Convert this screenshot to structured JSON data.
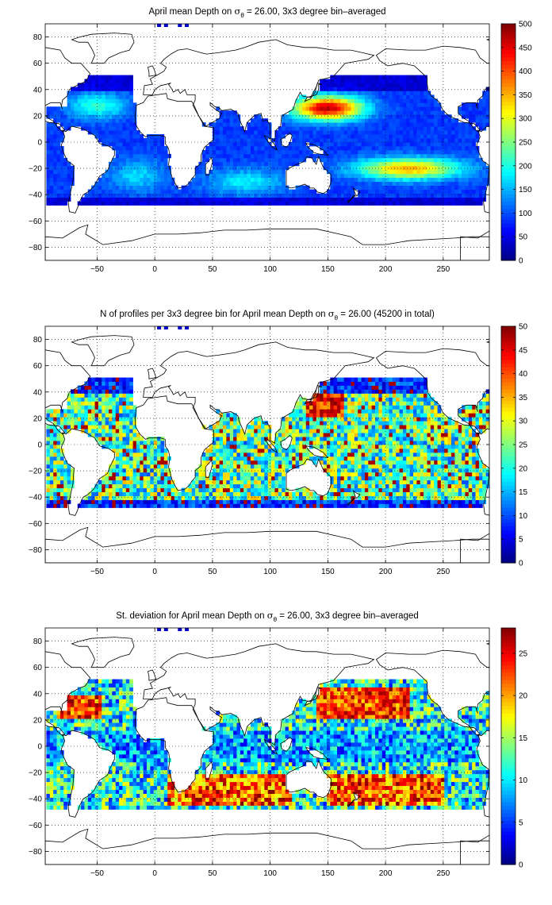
{
  "chart_data": [
    {
      "type": "heatmap",
      "title_prefix": "April mean Depth on ",
      "title_symbol": "σ",
      "title_subscript": "θ",
      "title_suffix": " = 26.00, 3x3 degree bin–averaged",
      "x_ticks": [
        "−50",
        "0",
        "50",
        "100",
        "150",
        "200",
        "250"
      ],
      "x_tick_values": [
        -50,
        0,
        50,
        100,
        150,
        200,
        250
      ],
      "y_ticks": [
        "80",
        "60",
        "40",
        "20",
        "0",
        "−20",
        "−40",
        "−60",
        "−80"
      ],
      "y_tick_values": [
        80,
        60,
        40,
        20,
        0,
        -20,
        -40,
        -60,
        -80
      ],
      "xlim": [
        -95,
        290
      ],
      "ylim": [
        -90,
        90
      ],
      "grid": true,
      "colorbar_ticks": [
        "500",
        "450",
        "400",
        "350",
        "300",
        "250",
        "200",
        "150",
        "100",
        "50",
        "0"
      ],
      "colorbar_values": [
        500,
        450,
        400,
        350,
        300,
        250,
        200,
        150,
        100,
        50,
        0
      ],
      "crange": [
        0,
        500
      ],
      "colormap": "jet",
      "field": "depth"
    },
    {
      "type": "heatmap",
      "title_prefix": "N of profiles per 3x3 degree bin for April mean Depth on ",
      "title_symbol": "σ",
      "title_subscript": "θ",
      "title_suffix": " = 26.00 (45200 in total)",
      "x_ticks": [
        "−50",
        "0",
        "50",
        "100",
        "150",
        "200",
        "250"
      ],
      "x_tick_values": [
        -50,
        0,
        50,
        100,
        150,
        200,
        250
      ],
      "y_ticks": [
        "80",
        "60",
        "40",
        "20",
        "0",
        "−20",
        "−40",
        "−60",
        "−80"
      ],
      "y_tick_values": [
        80,
        60,
        40,
        20,
        0,
        -20,
        -40,
        -60,
        -80
      ],
      "xlim": [
        -95,
        290
      ],
      "ylim": [
        -90,
        90
      ],
      "grid": true,
      "colorbar_ticks": [
        "50",
        "45",
        "40",
        "35",
        "30",
        "25",
        "20",
        "15",
        "10",
        "5",
        "0"
      ],
      "colorbar_values": [
        50,
        45,
        40,
        35,
        30,
        25,
        20,
        15,
        10,
        5,
        0
      ],
      "crange": [
        0,
        50
      ],
      "colormap": "jet",
      "field": "count"
    },
    {
      "type": "heatmap",
      "title_prefix": "St. deviation for April mean Depth on ",
      "title_symbol": "σ",
      "title_subscript": "θ",
      "title_suffix": " = 26.00, 3x3 degree bin–averaged",
      "x_ticks": [
        "−50",
        "0",
        "50",
        "100",
        "150",
        "200",
        "250"
      ],
      "x_tick_values": [
        -50,
        0,
        50,
        100,
        150,
        200,
        250
      ],
      "y_ticks": [
        "80",
        "60",
        "40",
        "20",
        "0",
        "−20",
        "−40",
        "−60",
        "−80"
      ],
      "y_tick_values": [
        80,
        60,
        40,
        20,
        0,
        -20,
        -40,
        -60,
        -80
      ],
      "xlim": [
        -95,
        290
      ],
      "ylim": [
        -90,
        90
      ],
      "grid": true,
      "colorbar_ticks": [
        "25",
        "20",
        "15",
        "10",
        "5",
        "0"
      ],
      "colorbar_values": [
        25,
        20,
        15,
        10,
        5,
        0
      ],
      "crange": [
        0,
        28
      ],
      "colormap": "jet",
      "field": "std"
    }
  ]
}
